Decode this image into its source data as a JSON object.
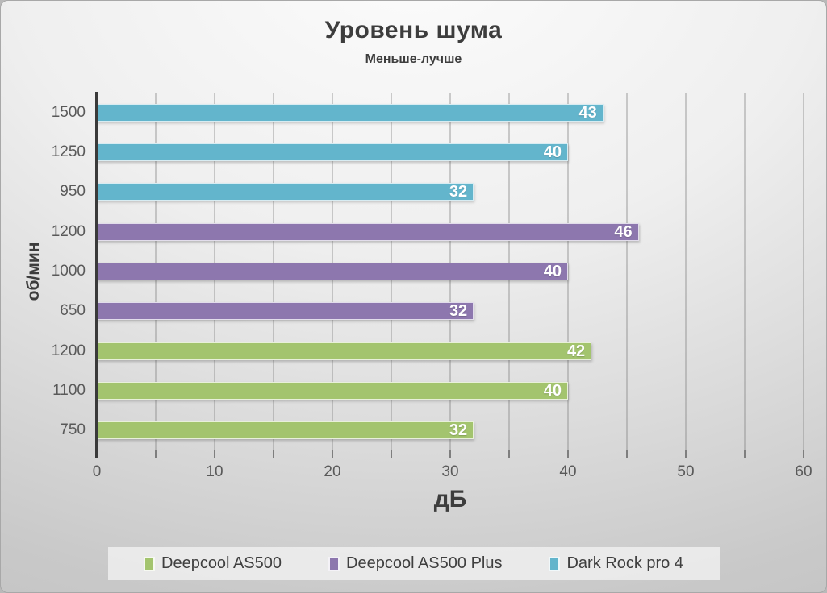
{
  "chart": {
    "title": "Уровень шума",
    "subtitle": "Меньше-лучше",
    "x_axis_title": "дБ",
    "y_axis_title": "об/мин"
  },
  "chart_data": {
    "type": "bar",
    "orientation": "horizontal",
    "title": "Уровень шума",
    "subtitle": "Меньше-лучше",
    "xlabel": "дБ",
    "ylabel": "об/мин",
    "xlim": [
      0,
      60
    ],
    "x_major_ticks": [
      0,
      10,
      20,
      30,
      40,
      50,
      60
    ],
    "x_minor_tick_step": 5,
    "grid": true,
    "gridline_step": 5,
    "value_labels": "inside-end",
    "legend_position": "bottom",
    "rows_top_to_bottom": [
      {
        "series": "Dark Rock pro 4",
        "category": "1500",
        "value": 43
      },
      {
        "series": "Dark Rock pro 4",
        "category": "1250",
        "value": 40
      },
      {
        "series": "Dark Rock pro 4",
        "category": "950",
        "value": 32
      },
      {
        "series": "Deepcool AS500 Plus",
        "category": "1200",
        "value": 46
      },
      {
        "series": "Deepcool AS500 Plus",
        "category": "1000",
        "value": 40
      },
      {
        "series": "Deepcool AS500 Plus",
        "category": "650",
        "value": 32
      },
      {
        "series": "Deepcool AS500",
        "category": "1200",
        "value": 42
      },
      {
        "series": "Deepcool AS500",
        "category": "1100",
        "value": 40
      },
      {
        "series": "Deepcool AS500",
        "category": "750",
        "value": 32
      }
    ],
    "series": [
      {
        "name": "Deepcool AS500",
        "color": "#a3c46e",
        "categories": [
          "750",
          "1100",
          "1200"
        ],
        "values": [
          32,
          40,
          42
        ]
      },
      {
        "name": "Deepcool AS500 Plus",
        "color": "#8d77ae",
        "categories": [
          "650",
          "1000",
          "1200"
        ],
        "values": [
          32,
          40,
          46
        ]
      },
      {
        "name": "Dark Rock pro 4",
        "color": "#63b5cc",
        "categories": [
          "950",
          "1250",
          "1500"
        ],
        "values": [
          32,
          40,
          43
        ]
      }
    ]
  },
  "legend": {
    "items": [
      {
        "label": "Deepcool AS500",
        "color": "#a3c46e"
      },
      {
        "label": "Deepcool AS500 Plus",
        "color": "#8d77ae"
      },
      {
        "label": "Dark Rock pro 4",
        "color": "#63b5cc"
      }
    ]
  },
  "colors": {
    "green": "#a3c46e",
    "purple": "#8d77ae",
    "teal": "#63b5cc",
    "title_text": "#3d3d3d",
    "axis_text": "#595959",
    "gridline": "#808080",
    "axis_line": "#3a3a3a",
    "value_label_text": "#ffffff"
  }
}
